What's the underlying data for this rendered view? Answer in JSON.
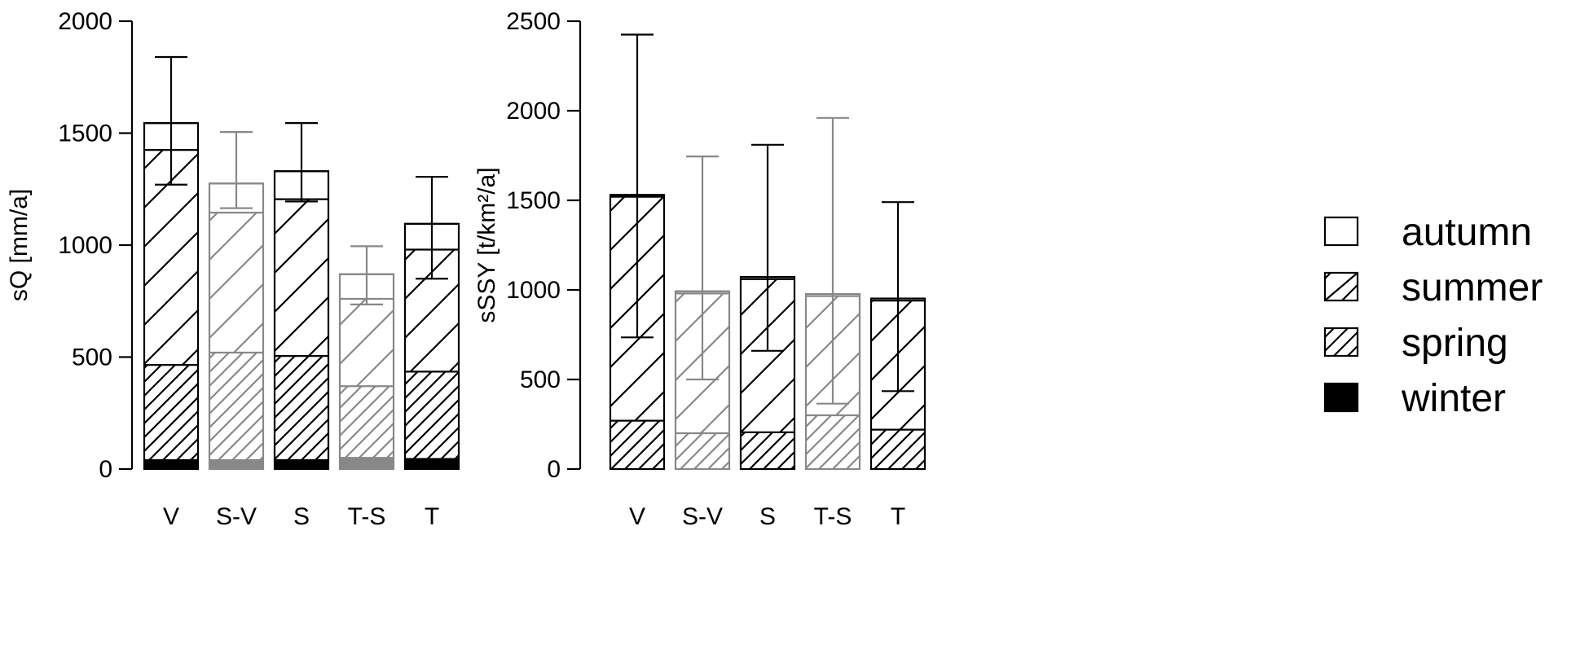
{
  "chart_data": [
    {
      "type": "bar",
      "stacked": true,
      "categories": [
        "V",
        "S-V",
        "S",
        "T-S",
        "T"
      ],
      "ylabel": "sQ [mm/a]",
      "ylim": [
        0,
        2000
      ],
      "yticks": [
        "0",
        "500",
        "1000",
        "1500",
        "2000"
      ],
      "series": [
        {
          "name": "winter",
          "values": [
            40,
            40,
            40,
            50,
            45
          ]
        },
        {
          "name": "spring",
          "values": [
            425,
            480,
            465,
            320,
            390
          ]
        },
        {
          "name": "summer",
          "values": [
            960,
            625,
            700,
            390,
            545
          ]
        },
        {
          "name": "autumn",
          "values": [
            120,
            130,
            125,
            110,
            115
          ]
        }
      ],
      "error_bars": {
        "lower": [
          1270,
          1165,
          1195,
          735,
          850
        ],
        "upper": [
          1840,
          1505,
          1545,
          995,
          1305
        ]
      },
      "bar_colors": [
        "#000000",
        "#888888",
        "#000000",
        "#888888",
        "#000000"
      ],
      "grid": false,
      "legend": "none"
    },
    {
      "type": "bar",
      "stacked": true,
      "categories": [
        "V",
        "S-V",
        "S",
        "T-S",
        "T"
      ],
      "ylabel": "sSSY [t/km²/a]",
      "ylim": [
        0,
        2500
      ],
      "yticks": [
        "0",
        "500",
        "1000",
        "1500",
        "2000",
        "2500"
      ],
      "series": [
        {
          "name": "winter",
          "values": [
            0,
            0,
            0,
            0,
            0
          ]
        },
        {
          "name": "spring",
          "values": [
            270,
            200,
            205,
            300,
            220
          ]
        },
        {
          "name": "summer",
          "values": [
            1250,
            780,
            855,
            665,
            720
          ]
        },
        {
          "name": "autumn",
          "values": [
            10,
            12,
            12,
            12,
            12
          ]
        }
      ],
      "error_bars": {
        "lower": [
          735,
          500,
          660,
          365,
          435
        ],
        "upper": [
          2425,
          1745,
          1810,
          1960,
          1490
        ]
      },
      "bar_colors": [
        "#000000",
        "#888888",
        "#000000",
        "#888888",
        "#000000"
      ],
      "grid": false,
      "legend": "none"
    }
  ],
  "legend": {
    "placement": "right",
    "items": [
      {
        "label": "autumn",
        "fill": "autumn"
      },
      {
        "label": "summer",
        "fill": "summer"
      },
      {
        "label": "spring",
        "fill": "spring"
      },
      {
        "label": "winter",
        "fill": "winter"
      }
    ]
  }
}
